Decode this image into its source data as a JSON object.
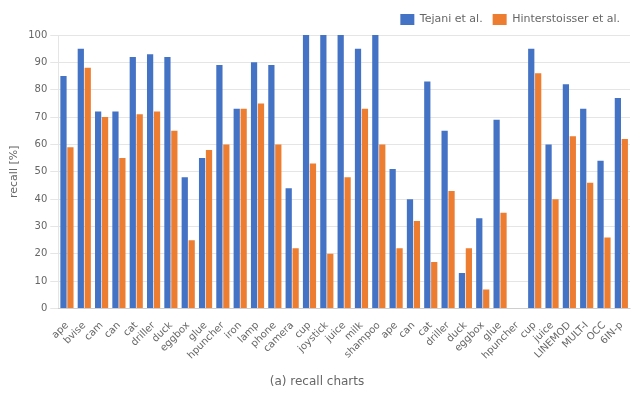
{
  "chart_data": {
    "type": "bar",
    "title": "(a) recall charts",
    "ylabel": "recall [%]",
    "categories": [
      "ape",
      "bvise",
      "cam",
      "can",
      "cat",
      "driller",
      "duck",
      "eggbox",
      "glue",
      "hpuncher",
      "iron",
      "lamp",
      "phone",
      "camera",
      "cup",
      "joystick",
      "juice",
      "milk",
      "shampoo",
      "ape",
      "can",
      "cat",
      "driller",
      "duck",
      "eggbox",
      "glue",
      "hpuncher",
      "cup",
      "juice",
      "LINEMOD",
      "MULT-I",
      "OCC",
      "6IN-p"
    ],
    "series": [
      {
        "name": "Tejani et al.",
        "color": "#4472C4",
        "values": [
          85,
          95,
          72,
          72,
          92,
          93,
          92,
          48,
          55,
          89,
          73,
          90,
          89,
          44,
          100,
          100,
          100,
          95,
          100,
          51,
          40,
          83,
          65,
          13,
          33,
          69,
          0,
          95,
          60,
          82,
          73,
          54,
          77
        ]
      },
      {
        "name": "Hinterstoisser et al.",
        "color": "#ED7D31",
        "values": [
          59,
          88,
          70,
          55,
          71,
          72,
          65,
          25,
          58,
          60,
          73,
          75,
          60,
          22,
          53,
          20,
          48,
          73,
          60,
          22,
          32,
          17,
          43,
          22,
          7,
          35,
          0,
          86,
          40,
          63,
          46,
          26,
          62
        ]
      }
    ],
    "ylim": [
      0,
      100
    ],
    "yticks": [
      0,
      10,
      20,
      30,
      40,
      50,
      60,
      70,
      80,
      90,
      100
    ],
    "grid": true,
    "legend": "upper right"
  }
}
